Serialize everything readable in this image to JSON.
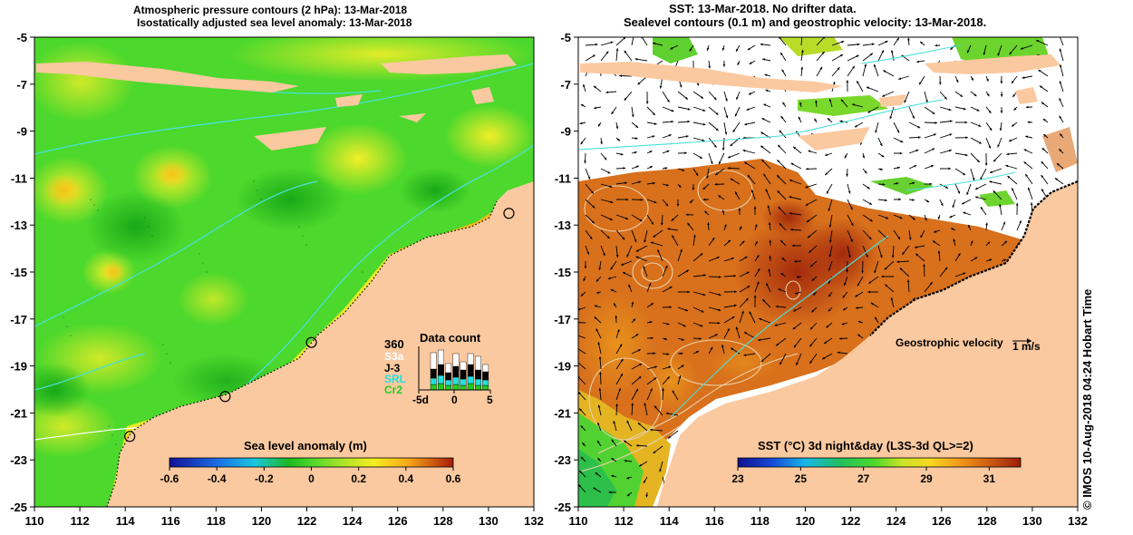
{
  "left_panel": {
    "title_line1": "Atmospheric pressure contours (2 hPa): 13-Mar-2018",
    "title_line2": "Isostatically adjusted sea level anomaly: 13-Mar-2018",
    "colorbar_label": "Sea level anomaly (m)",
    "data_count": {
      "title": "Data count",
      "ymax_label": "360",
      "series": [
        {
          "name": "S3a",
          "color": "#ffffff"
        },
        {
          "name": "J-3",
          "color": "#000000"
        },
        {
          "name": "SRL",
          "color": "#22e0e0"
        },
        {
          "name": "Cr2",
          "color": "#22cc22"
        }
      ],
      "x_ticks": [
        "-5d",
        "0",
        "5"
      ]
    }
  },
  "right_panel": {
    "title_line1": "SST: 13-Mar-2018. No drifter data.",
    "title_line2": "Sealevel contours (0.1 m) and geostrophic velocity: 13-Mar-2018.",
    "velocity_label": "Geostrophic velocity",
    "velocity_scale": "1 m/s",
    "colorbar_label": "SST (°C) 3d night&day (L3S-3d QL>=2)"
  },
  "credit": "© IMOS 10-Aug-2018 04:24 Hobart Time",
  "colors": {
    "land": "#fbc9a0",
    "ocean_green": "#4cd82c",
    "sst_orange": "#d2691e"
  },
  "chart_data": [
    {
      "type": "heatmap",
      "title": "Atmospheric pressure contours (2 hPa): 13-Mar-2018 / Isostatically adjusted sea level anomaly: 13-Mar-2018",
      "x_ticks": [
        110,
        112,
        114,
        116,
        118,
        120,
        122,
        124,
        126,
        128,
        130,
        132
      ],
      "y_ticks": [
        -5,
        -7,
        -9,
        -11,
        -13,
        -15,
        -17,
        -19,
        -21,
        -23,
        -25
      ],
      "xlim": [
        110,
        132
      ],
      "ylim": [
        -25,
        -5
      ],
      "colorbar": {
        "label": "Sea level anomaly (m)",
        "min": -0.6,
        "max": 0.6,
        "ticks": [
          "-0.6",
          "-0.4",
          "-0.2",
          "0",
          "0.2",
          "0.4",
          "0.6"
        ]
      },
      "tide_gauges": [
        {
          "lon": 130.9,
          "lat": -12.5
        },
        {
          "lon": 122.2,
          "lat": -18.0
        },
        {
          "lon": 118.4,
          "lat": -20.3
        },
        {
          "lon": 114.2,
          "lat": -22.0
        }
      ]
    },
    {
      "type": "heatmap",
      "title": "SST: 13-Mar-2018. No drifter data. / Sealevel contours (0.1 m) and geostrophic velocity: 13-Mar-2018.",
      "x_ticks": [
        110,
        112,
        114,
        116,
        118,
        120,
        122,
        124,
        126,
        128,
        130,
        132
      ],
      "y_ticks": [
        -5,
        -7,
        -9,
        -11,
        -13,
        -15,
        -17,
        -19,
        -21,
        -23,
        -25
      ],
      "xlim": [
        110,
        132
      ],
      "ylim": [
        -25,
        -5
      ],
      "colorbar": {
        "label": "SST (°C) 3d night&day (L3S-3d QL>=2)",
        "min": 23,
        "max": 32,
        "ticks": [
          "23",
          "25",
          "27",
          "29",
          "31"
        ]
      }
    }
  ]
}
